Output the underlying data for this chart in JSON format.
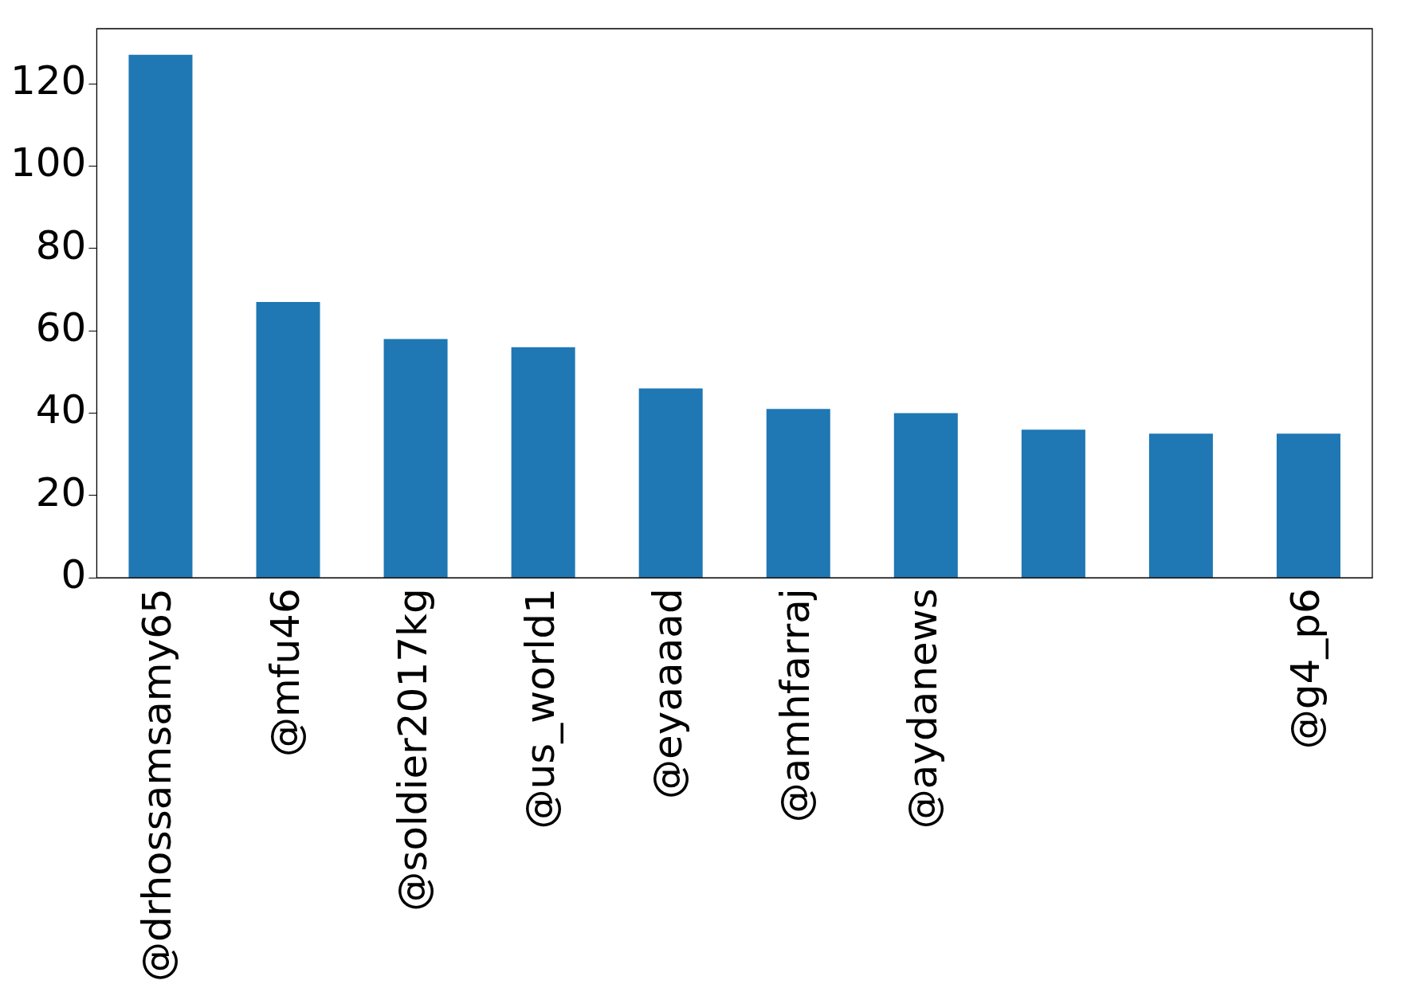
{
  "chart_data": {
    "type": "bar",
    "categories": [
      "@drhossamsamy65",
      "@mfu46",
      "@soldier2017kg",
      "@us_world1",
      "@eyaaaad",
      "@amhfarraj",
      "@aydanews",
      null,
      null,
      "@g4_p6"
    ],
    "values": [
      127,
      67,
      58,
      56,
      46,
      41,
      40,
      36,
      35,
      35
    ],
    "color": "#1f77b4",
    "ylim": [
      0,
      133.35
    ],
    "yticks": [
      0,
      20,
      40,
      60,
      80,
      100,
      120
    ]
  }
}
